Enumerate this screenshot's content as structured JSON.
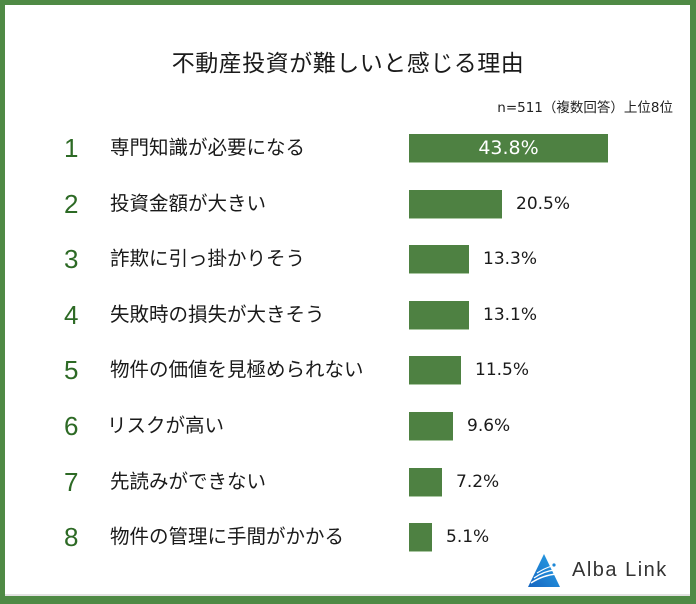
{
  "title": "不動産投資が難しいと感じる理由",
  "note": "n=511（複数回答）上位8位",
  "brand": {
    "name": "Alba Link",
    "logo_icon": "alba-link-triangle-logo",
    "color": "#1e88d6"
  },
  "colors": {
    "frame": "#4f8a45",
    "bar": "#4e8142",
    "rank": "#2d6a25"
  },
  "rows": [
    {
      "rank": "1",
      "label": "専門知識が必要になる",
      "value": 43.8,
      "value_label": "43.8%"
    },
    {
      "rank": "2",
      "label": "投資金額が大きい",
      "value": 20.5,
      "value_label": "20.5%"
    },
    {
      "rank": "3",
      "label": "詐欺に引っ掛かりそう",
      "value": 13.3,
      "value_label": "13.3%"
    },
    {
      "rank": "4",
      "label": "失敗時の損失が大きそう",
      "value": 13.1,
      "value_label": "13.1%"
    },
    {
      "rank": "5",
      "label": "物件の価値を見極められない",
      "value": 11.5,
      "value_label": "11.5%"
    },
    {
      "rank": "6",
      "label": "リスクが高い",
      "value": 9.6,
      "value_label": "9.6%"
    },
    {
      "rank": "7",
      "label": "先読みができない",
      "value": 7.2,
      "value_label": "7.2%"
    },
    {
      "rank": "8",
      "label": "物件の管理に手間がかかる",
      "value": 5.1,
      "value_label": "5.1%"
    }
  ],
  "chart_data": {
    "type": "bar",
    "orientation": "horizontal",
    "title": "不動産投資が難しいと感じる理由",
    "subtitle": "n=511（複数回答）上位8位",
    "categories": [
      "専門知識が必要になる",
      "投資金額が大きい",
      "詐欺に引っ掛かりそう",
      "失敗時の損失が大きそう",
      "物件の価値を見極められない",
      "リスクが高い",
      "先読みができない",
      "物件の管理に手間がかかる"
    ],
    "values": [
      43.8,
      20.5,
      13.3,
      13.1,
      11.5,
      9.6,
      7.2,
      5.1
    ],
    "unit": "%",
    "xlabel": "",
    "ylabel": "",
    "grid": false,
    "legend": null,
    "data_labels": true
  }
}
